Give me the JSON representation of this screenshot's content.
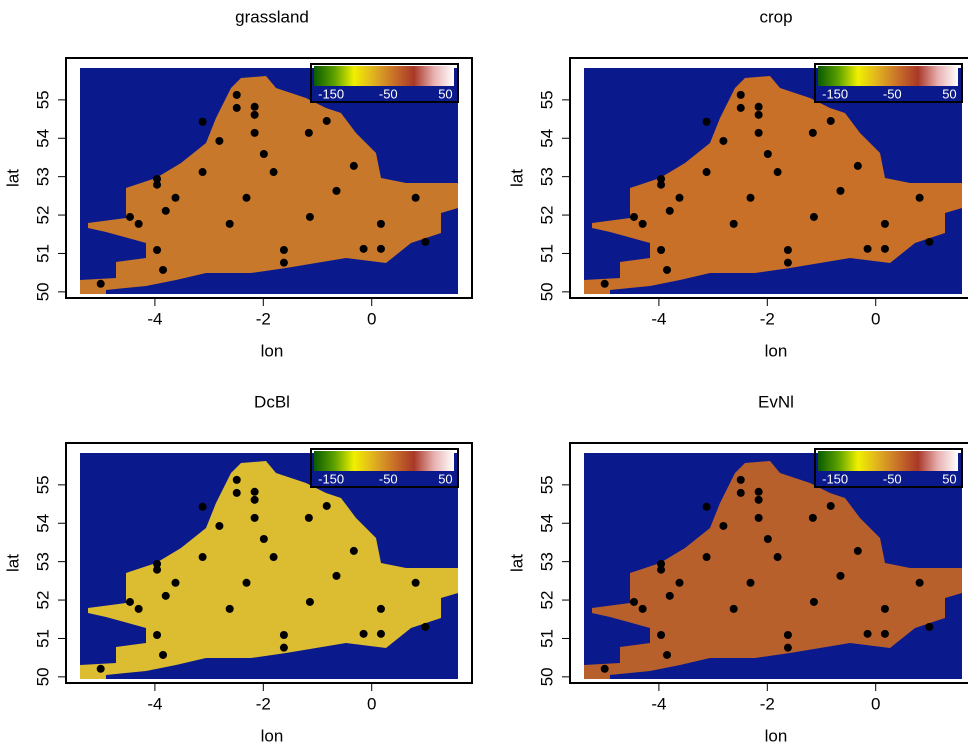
{
  "chart_data": [
    {
      "type": "scatter",
      "title": "grassland",
      "x_label": "lon",
      "y_label": "lat",
      "xlim": [
        -5.64,
        1.85
      ],
      "ylim": [
        49.84,
        56.09
      ],
      "xticks": [
        -4,
        -2,
        0
      ],
      "yticks": [
        50,
        51,
        52,
        53,
        54,
        55
      ],
      "background_color": "#0a1a8c",
      "fill_color": "#c8782a",
      "point_color": "#000000",
      "colorbar": {
        "lim": [
          -180,
          65
        ],
        "ticks": [
          -150,
          -50,
          50
        ],
        "colors": [
          "#0a5a00",
          "#5aa000",
          "#f0f000",
          "#e0b020",
          "#c87028",
          "#a83828",
          "#e8b0b0",
          "#ffffff"
        ]
      },
      "x": [
        -5.0,
        -3.85,
        -3.96,
        -4.46,
        -4.3,
        -3.8,
        -3.62,
        -3.96,
        -3.96,
        -3.12,
        -3.12,
        -2.81,
        -2.49,
        -2.49,
        -2.16,
        -2.16,
        -2.16,
        -1.99,
        -1.81,
        -2.31,
        -2.62,
        -1.62,
        -1.62,
        -1.16,
        -0.83,
        -0.65,
        -0.33,
        -1.14,
        0.17,
        -0.15,
        0.17,
        0.81,
        0.99
      ],
      "y": [
        50.21,
        50.57,
        51.09,
        51.95,
        51.77,
        52.11,
        52.45,
        52.94,
        52.79,
        53.12,
        54.43,
        53.93,
        55.13,
        54.79,
        54.82,
        54.61,
        54.14,
        53.59,
        53.12,
        52.45,
        51.77,
        51.09,
        50.76,
        54.14,
        54.45,
        52.63,
        53.28,
        51.95,
        51.77,
        51.12,
        51.12,
        52.45,
        51.3
      ]
    },
    {
      "type": "scatter",
      "title": "crop",
      "x_label": "lon",
      "y_label": "lat",
      "xlim": [
        -5.64,
        1.85
      ],
      "ylim": [
        49.84,
        56.09
      ],
      "xticks": [
        -4,
        -2,
        0
      ],
      "yticks": [
        50,
        51,
        52,
        53,
        54,
        55
      ],
      "background_color": "#0a1a8c",
      "fill_color": "#c87028",
      "point_color": "#000000",
      "colorbar": {
        "lim": [
          -180,
          65
        ],
        "ticks": [
          -150,
          -50,
          50
        ],
        "colors": [
          "#0a5a00",
          "#5aa000",
          "#f0f000",
          "#e0b020",
          "#c87028",
          "#a83828",
          "#e8b0b0",
          "#ffffff"
        ]
      },
      "x": [
        -5.0,
        -3.85,
        -3.96,
        -4.46,
        -4.3,
        -3.8,
        -3.62,
        -3.96,
        -3.96,
        -3.12,
        -3.12,
        -2.81,
        -2.49,
        -2.49,
        -2.16,
        -2.16,
        -2.16,
        -1.99,
        -1.81,
        -2.31,
        -2.62,
        -1.62,
        -1.62,
        -1.16,
        -0.83,
        -0.65,
        -0.33,
        -1.14,
        0.17,
        -0.15,
        0.17,
        0.81,
        0.99
      ],
      "y": [
        50.21,
        50.57,
        51.09,
        51.95,
        51.77,
        52.11,
        52.45,
        52.94,
        52.79,
        53.12,
        54.43,
        53.93,
        55.13,
        54.79,
        54.82,
        54.61,
        54.14,
        53.59,
        53.12,
        52.45,
        51.77,
        51.09,
        50.76,
        54.14,
        54.45,
        52.63,
        53.28,
        51.95,
        51.77,
        51.12,
        51.12,
        52.45,
        51.3
      ]
    },
    {
      "type": "scatter",
      "title": "DcBl",
      "x_label": "lon",
      "y_label": "lat",
      "xlim": [
        -5.64,
        1.85
      ],
      "ylim": [
        49.84,
        56.09
      ],
      "xticks": [
        -4,
        -2,
        0
      ],
      "yticks": [
        50,
        51,
        52,
        53,
        54,
        55
      ],
      "background_color": "#0a1a8c",
      "fill_color": "#dcbc30",
      "point_color": "#000000",
      "colorbar": {
        "lim": [
          -180,
          65
        ],
        "ticks": [
          -150,
          -50,
          50
        ],
        "colors": [
          "#0a5a00",
          "#5aa000",
          "#f0f000",
          "#e0b020",
          "#c87028",
          "#a83828",
          "#e8b0b0",
          "#ffffff"
        ]
      },
      "x": [
        -5.0,
        -3.85,
        -3.96,
        -4.46,
        -4.3,
        -3.8,
        -3.62,
        -3.96,
        -3.96,
        -3.12,
        -3.12,
        -2.81,
        -2.49,
        -2.49,
        -2.16,
        -2.16,
        -2.16,
        -1.99,
        -1.81,
        -2.31,
        -2.62,
        -1.62,
        -1.62,
        -1.16,
        -0.83,
        -0.65,
        -0.33,
        -1.14,
        0.17,
        -0.15,
        0.17,
        0.81,
        0.99
      ],
      "y": [
        50.21,
        50.57,
        51.09,
        51.95,
        51.77,
        52.11,
        52.45,
        52.94,
        52.79,
        53.12,
        54.43,
        53.93,
        55.13,
        54.79,
        54.82,
        54.61,
        54.14,
        53.59,
        53.12,
        52.45,
        51.77,
        51.09,
        50.76,
        54.14,
        54.45,
        52.63,
        53.28,
        51.95,
        51.77,
        51.12,
        51.12,
        52.45,
        51.3
      ]
    },
    {
      "type": "scatter",
      "title": "EvNl",
      "x_label": "lon",
      "y_label": "lat",
      "xlim": [
        -5.64,
        1.85
      ],
      "ylim": [
        49.84,
        56.09
      ],
      "xticks": [
        -4,
        -2,
        0
      ],
      "yticks": [
        50,
        51,
        52,
        53,
        54,
        55
      ],
      "background_color": "#0a1a8c",
      "fill_color": "#b8602c",
      "point_color": "#000000",
      "colorbar": {
        "lim": [
          -180,
          65
        ],
        "ticks": [
          -150,
          -50,
          50
        ],
        "colors": [
          "#0a5a00",
          "#5aa000",
          "#f0f000",
          "#e0b020",
          "#c87028",
          "#a83828",
          "#e8b0b0",
          "#ffffff"
        ]
      },
      "x": [
        -5.0,
        -3.85,
        -3.96,
        -4.46,
        -4.3,
        -3.8,
        -3.62,
        -3.96,
        -3.96,
        -3.12,
        -3.12,
        -2.81,
        -2.49,
        -2.49,
        -2.16,
        -2.16,
        -2.16,
        -1.99,
        -1.81,
        -2.31,
        -2.62,
        -1.62,
        -1.62,
        -1.16,
        -0.83,
        -0.65,
        -0.33,
        -1.14,
        0.17,
        -0.15,
        0.17,
        0.81,
        0.99
      ],
      "y": [
        50.21,
        50.57,
        51.09,
        51.95,
        51.77,
        52.11,
        52.45,
        52.94,
        52.79,
        53.12,
        54.43,
        53.93,
        55.13,
        54.79,
        54.82,
        54.61,
        54.14,
        53.59,
        53.12,
        52.45,
        51.77,
        51.09,
        50.76,
        54.14,
        54.45,
        52.63,
        53.28,
        51.95,
        51.77,
        51.12,
        51.12,
        52.45,
        51.3
      ]
    }
  ]
}
